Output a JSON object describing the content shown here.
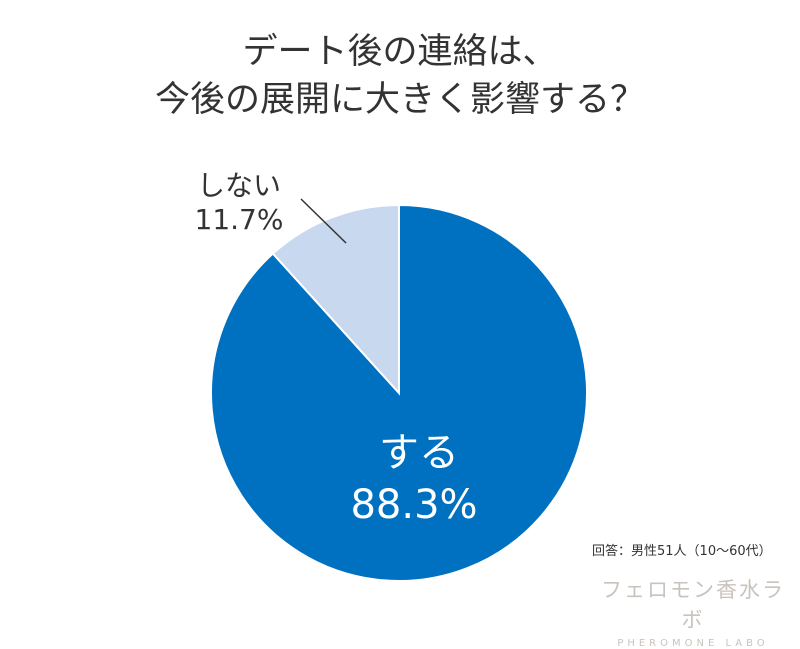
{
  "title_lines": [
    "デート後の連絡は、",
    "今後の展開に大きく影響する？"
  ],
  "footnote": "回答：男性51人（10〜60代）",
  "brand": {
    "japanese": "フェロモン香水ラボ",
    "english": "PHEROMONE LABO"
  },
  "chart_data": {
    "type": "pie",
    "title": "デート後の連絡は、今後の展開に大きく影響する？",
    "categories": [
      "する",
      "しない"
    ],
    "values": [
      88.3,
      11.7
    ],
    "value_labels": [
      "88.3%",
      "11.7%"
    ],
    "unit": "%",
    "start": "12 o'clock, clockwise",
    "colors": [
      "#0070c0",
      "#c7d8ef"
    ],
    "label_colors": [
      "#ffffff",
      "#333333"
    ],
    "label_placement": [
      "inside",
      "outside-top-left with leader line"
    ]
  }
}
